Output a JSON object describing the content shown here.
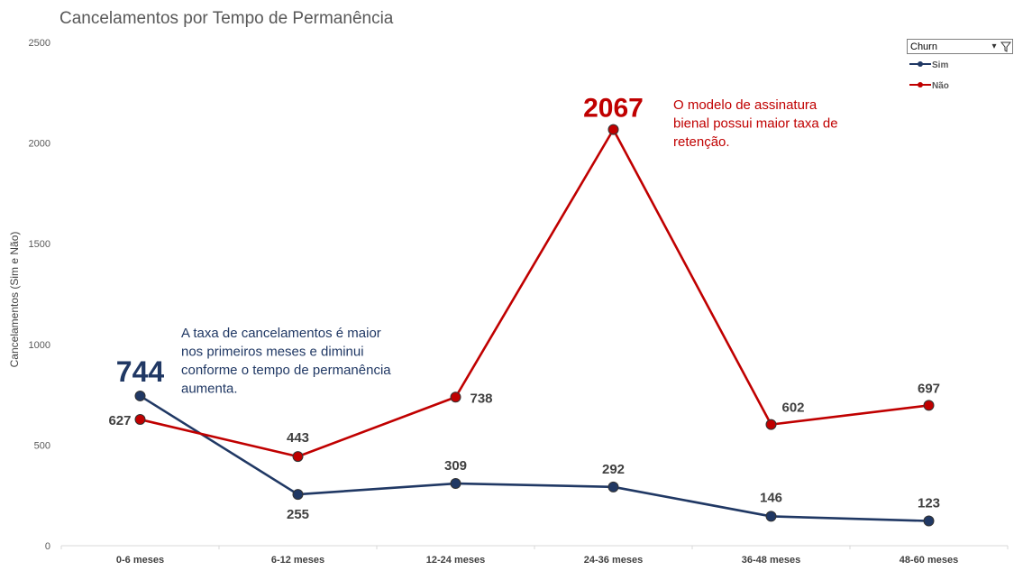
{
  "filter": {
    "label": "Churn"
  },
  "chart_data": {
    "type": "line",
    "title": "Cancelamentos por Tempo de Permanência",
    "xlabel": "",
    "ylabel": "Cancelamentos (Sim e Não)",
    "ylim": [
      0,
      2500
    ],
    "yticks": [
      0,
      500,
      1000,
      1500,
      2000,
      2500
    ],
    "grid": false,
    "legend": "top-right",
    "categories": [
      "0-6 meses",
      "6-12 meses",
      "12-24 meses",
      "24-36 meses",
      "36-48 meses",
      "48-60 meses"
    ],
    "series": [
      {
        "name": "Sim",
        "color": "#203864",
        "values": [
          744,
          255,
          309,
          292,
          146,
          123
        ]
      },
      {
        "name": "Não",
        "color": "#C00000",
        "values": [
          627,
          443,
          738,
          2067,
          602,
          697
        ]
      }
    ],
    "annotations": [
      {
        "lines": [
          "A taxa de cancelamentos é maior",
          "nos primeiros meses e diminui",
          "conforme o tempo de permanência",
          "aumenta."
        ],
        "color": "#203864"
      },
      {
        "lines": [
          "O modelo de assinatura",
          "bienal possui maior taxa de",
          "retenção."
        ],
        "color": "#C00000"
      }
    ]
  }
}
